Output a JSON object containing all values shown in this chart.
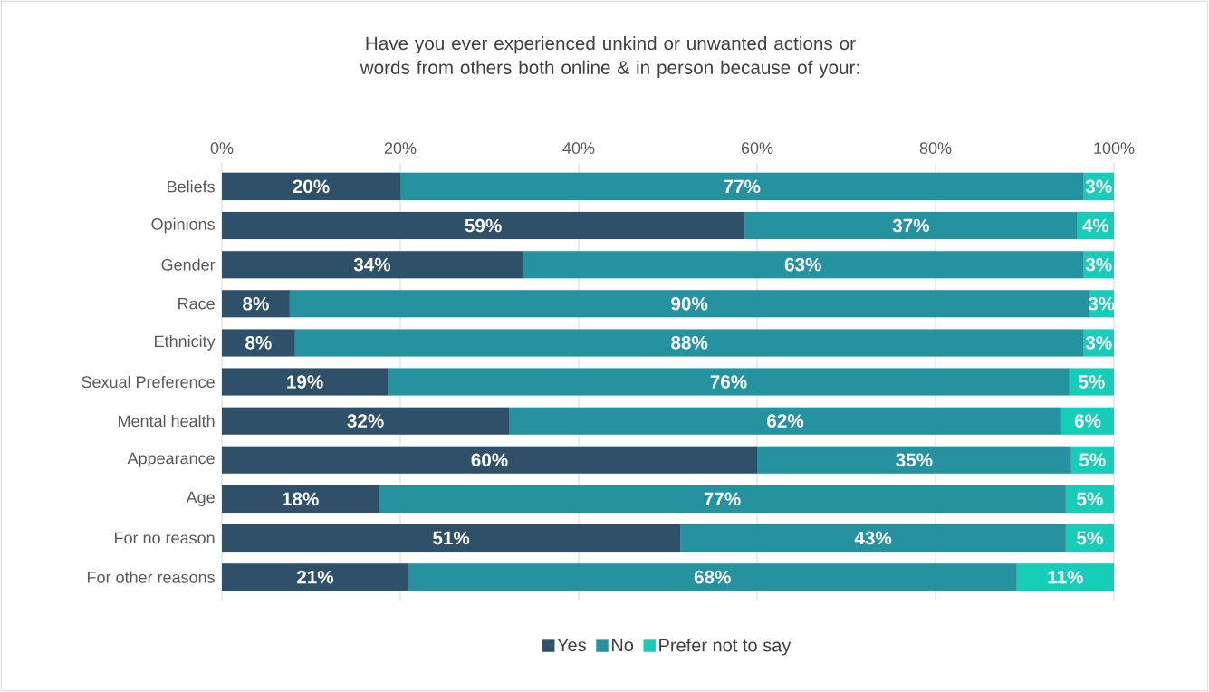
{
  "chart_data": {
    "type": "bar",
    "orientation": "horizontal",
    "stacked": true,
    "title": "Have you ever experienced unkind or unwanted actions or words from others both online & in person because of your:",
    "categories": [
      "Beliefs",
      "Opinions",
      "Gender",
      "Race",
      "Ethnicity",
      "Sexual Preference",
      "Mental health",
      "Appearance",
      "Age",
      "For no reason",
      "For other reasons"
    ],
    "series": [
      {
        "name": "Yes",
        "color": "#2e5068",
        "values": [
          20.0,
          58.6,
          33.7,
          7.6,
          8.2,
          18.6,
          32.2,
          60.0,
          17.6,
          51.4,
          20.9
        ],
        "value_labels": [
          "20%",
          "59%",
          "34%",
          "8%",
          "8%",
          "19%",
          "32%",
          "60%",
          "18%",
          "51%",
          "21%"
        ]
      },
      {
        "name": "No",
        "color": "#24939f",
        "values": [
          76.6,
          37.3,
          62.9,
          89.6,
          88.4,
          76.4,
          61.9,
          35.2,
          77.0,
          43.2,
          68.2
        ],
        "value_labels": [
          "77%",
          "37%",
          "63%",
          "90%",
          "88%",
          "76%",
          "62%",
          "35%",
          "77%",
          "43%",
          "68%"
        ]
      },
      {
        "name": "Prefer not to say",
        "color": "#16cdb8",
        "values": [
          3.4,
          4.1,
          3.4,
          2.8,
          3.4,
          5.0,
          5.9,
          4.8,
          5.4,
          5.4,
          10.9
        ],
        "value_labels": [
          "3%",
          "4%",
          "3%",
          "3%",
          "3%",
          "5%",
          "6%",
          "5%",
          "5%",
          "5%",
          "11%"
        ]
      }
    ],
    "xlim": [
      0,
      100
    ],
    "xticks": [
      {
        "value": 0,
        "label": "0%"
      },
      {
        "value": 20,
        "label": "20%"
      },
      {
        "value": 40,
        "label": "40%"
      },
      {
        "value": 60,
        "label": "60%"
      },
      {
        "value": 80,
        "label": "80%"
      },
      {
        "value": 100,
        "label": "100%"
      }
    ],
    "grid": "x",
    "legend": "bottom"
  }
}
